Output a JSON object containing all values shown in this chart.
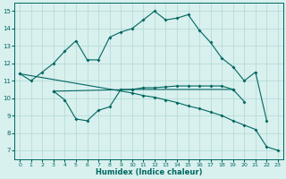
{
  "bg_color": "#d8f0ee",
  "grid_color": "#b0d8d4",
  "line_color": "#006660",
  "xlabel": "Humidex (Indice chaleur)",
  "xlim": [
    -0.5,
    23.5
  ],
  "ylim": [
    6.5,
    15.5
  ],
  "yticks": [
    7,
    8,
    9,
    10,
    11,
    12,
    13,
    14,
    15
  ],
  "xticks": [
    0,
    1,
    2,
    3,
    4,
    5,
    6,
    7,
    8,
    9,
    10,
    11,
    12,
    13,
    14,
    15,
    16,
    17,
    18,
    19,
    20,
    21,
    22,
    23
  ],
  "line1_x": [
    0,
    1,
    2,
    3,
    4,
    5,
    6,
    7,
    8,
    9,
    10,
    11,
    12,
    13,
    14,
    15,
    16,
    17,
    18,
    19,
    20,
    21,
    22
  ],
  "line1_y": [
    11.4,
    11.0,
    11.5,
    12.0,
    12.7,
    13.3,
    12.2,
    12.2,
    13.5,
    13.8,
    14.0,
    14.5,
    15.0,
    14.5,
    14.6,
    14.8,
    13.9,
    13.2,
    12.3,
    11.8,
    11.0,
    11.5,
    8.7
  ],
  "line2_x": [
    3,
    4,
    5,
    6,
    7,
    8,
    9,
    10,
    11,
    12,
    13,
    14,
    15,
    16,
    17,
    18,
    19,
    20
  ],
  "line2_y": [
    10.4,
    9.9,
    8.8,
    8.7,
    9.3,
    9.5,
    10.5,
    10.5,
    10.6,
    10.6,
    10.65,
    10.7,
    10.7,
    10.7,
    10.7,
    10.7,
    10.5,
    9.8
  ],
  "line3_x": [
    3,
    10,
    19
  ],
  "line3_y": [
    10.4,
    10.5,
    10.5
  ],
  "line4_x": [
    0,
    10,
    11,
    12,
    13,
    14,
    15,
    16,
    17,
    18,
    19,
    20,
    21,
    22,
    23
  ],
  "line4_y": [
    11.4,
    10.3,
    10.15,
    10.05,
    9.9,
    9.75,
    9.55,
    9.4,
    9.2,
    9.0,
    8.7,
    8.45,
    8.2,
    7.2,
    7.0
  ]
}
